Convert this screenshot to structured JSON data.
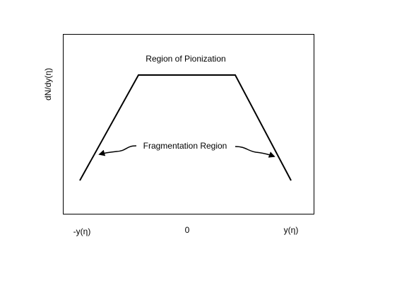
{
  "axes": {
    "y_label": "dN/dy(η)",
    "x_labels": [
      "-y(η)",
      "0",
      "y(η)"
    ]
  },
  "annotations": {
    "top": "Region of Pionization",
    "middle": "Fragmentation Region"
  }
}
